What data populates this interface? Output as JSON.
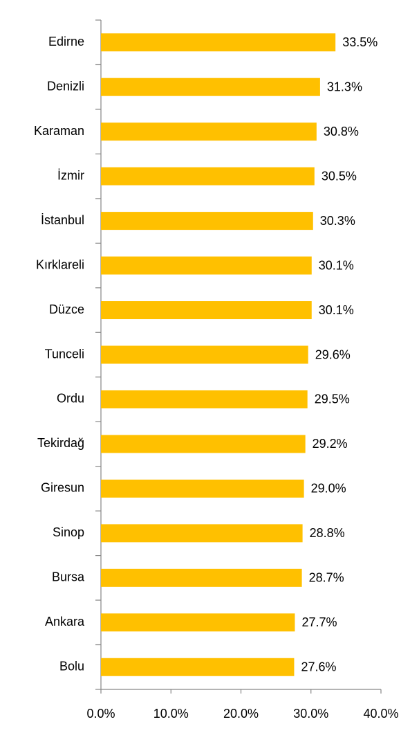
{
  "chart_data": {
    "type": "bar",
    "orientation": "horizontal",
    "categories": [
      "Edirne",
      "Denizli",
      "Karaman",
      "İzmir",
      "İstanbul",
      "Kırklareli",
      "Düzce",
      "Tunceli",
      "Ordu",
      "Tekirdağ",
      "Giresun",
      "Sinop",
      "Bursa",
      "Ankara",
      "Bolu"
    ],
    "values": [
      33.5,
      31.3,
      30.8,
      30.5,
      30.3,
      30.1,
      30.1,
      29.6,
      29.5,
      29.2,
      29.0,
      28.8,
      28.7,
      27.7,
      27.6
    ],
    "value_labels": [
      "33.5%",
      "31.3%",
      "30.8%",
      "30.5%",
      "30.3%",
      "30.1%",
      "30.1%",
      "29.6%",
      "29.5%",
      "29.2%",
      "29.0%",
      "28.8%",
      "28.7%",
      "27.7%",
      "27.6%"
    ],
    "color": "#ffc000",
    "xlim": [
      0,
      40
    ],
    "xticks": [
      {
        "value": 0,
        "label": "0.0%"
      },
      {
        "value": 10,
        "label": "10.0%"
      },
      {
        "value": 20,
        "label": "20.0%"
      },
      {
        "value": 30,
        "label": "30.0%"
      },
      {
        "value": 40,
        "label": "40.0%"
      }
    ],
    "grid": false
  }
}
